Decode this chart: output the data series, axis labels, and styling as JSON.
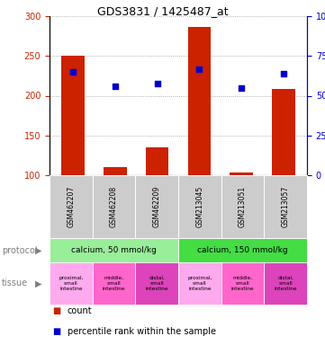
{
  "title": "GDS3831 / 1425487_at",
  "samples": [
    "GSM462207",
    "GSM462208",
    "GSM462209",
    "GSM213045",
    "GSM213051",
    "GSM213057"
  ],
  "bar_values": [
    250,
    110,
    135,
    287,
    103,
    208
  ],
  "bar_bottom": 100,
  "scatter_values": [
    230,
    212,
    215,
    233,
    210,
    228
  ],
  "bar_color": "#cc2200",
  "scatter_color": "#0000cc",
  "ylim_left": [
    100,
    300
  ],
  "ylim_right": [
    0,
    100
  ],
  "yticks_left": [
    100,
    150,
    200,
    250,
    300
  ],
  "yticks_right": [
    0,
    25,
    50,
    75,
    100
  ],
  "protocol_groups": [
    {
      "label": "calcium, 50 mmol/kg",
      "color": "#99ee99",
      "span": [
        0,
        3
      ]
    },
    {
      "label": "calcium, 150 mmol/kg",
      "color": "#44dd44",
      "span": [
        3,
        6
      ]
    }
  ],
  "tissue_colors": [
    "#ffaaee",
    "#ff66cc",
    "#dd44bb",
    "#ffaaee",
    "#ff66cc",
    "#dd44bb"
  ],
  "tissue_labels": [
    "proximal,\nsmall\nintestine",
    "middle,\nsmall\nintestine",
    "distal,\nsmall\nintestine",
    "proximal,\nsmall\nintestine",
    "middle,\nsmall\nintestine",
    "distal,\nsmall\nintestine"
  ],
  "legend_count_color": "#cc2200",
  "legend_scatter_color": "#0000cc",
  "left_axis_color": "#cc2200",
  "right_axis_color": "#0000cc",
  "bg_color": "#ffffff",
  "grid_color": "#999999",
  "sample_box_color": "#cccccc"
}
